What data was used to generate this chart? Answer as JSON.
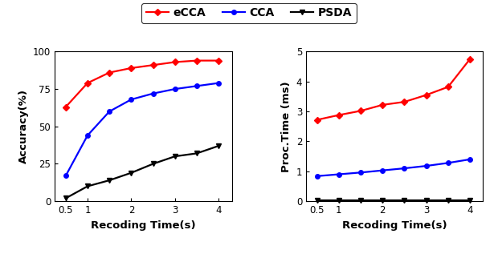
{
  "x": [
    0.5,
    1.0,
    1.5,
    2.0,
    2.5,
    3.0,
    3.5,
    4.0
  ],
  "accuracy": {
    "eCCA": [
      63,
      79,
      86,
      89,
      91,
      93,
      94,
      94
    ],
    "CCA": [
      17,
      44,
      60,
      68,
      72,
      75,
      77,
      79
    ],
    "PSDA": [
      2,
      10,
      14,
      19,
      25,
      30,
      32,
      37
    ]
  },
  "proc_time": {
    "eCCA": [
      2.72,
      2.88,
      3.02,
      3.22,
      3.32,
      3.55,
      3.82,
      4.75
    ],
    "CCA": [
      0.84,
      0.9,
      0.96,
      1.03,
      1.1,
      1.18,
      1.28,
      1.4
    ],
    "PSDA": [
      0.02,
      0.02,
      0.02,
      0.02,
      0.02,
      0.02,
      0.02,
      0.02
    ]
  },
  "colors": {
    "eCCA": "#ff0000",
    "CCA": "#0000ff",
    "PSDA": "#000000"
  },
  "markers": {
    "eCCA": "D",
    "CCA": "o",
    "PSDA": "v"
  },
  "legend_labels": [
    "eCCA",
    "CCA",
    "PSDA"
  ],
  "xlabel": "Recoding Time(s)",
  "ylabel_left": "Accuracy(%)",
  "ylabel_right": "Proc.Time (ms)",
  "xlim": [
    0.25,
    4.3
  ],
  "ylim_acc": [
    0,
    100
  ],
  "ylim_time": [
    0,
    5
  ],
  "yticks_acc": [
    0,
    25,
    50,
    75,
    100
  ],
  "yticks_time": [
    0,
    1,
    2,
    3,
    4,
    5
  ],
  "xticks": [
    0.5,
    1,
    2,
    3,
    4
  ],
  "xtick_labels": [
    "0.5",
    "1",
    "2",
    "3",
    "4"
  ],
  "background": "#ffffff",
  "linewidth": 1.6,
  "markersize": 4
}
